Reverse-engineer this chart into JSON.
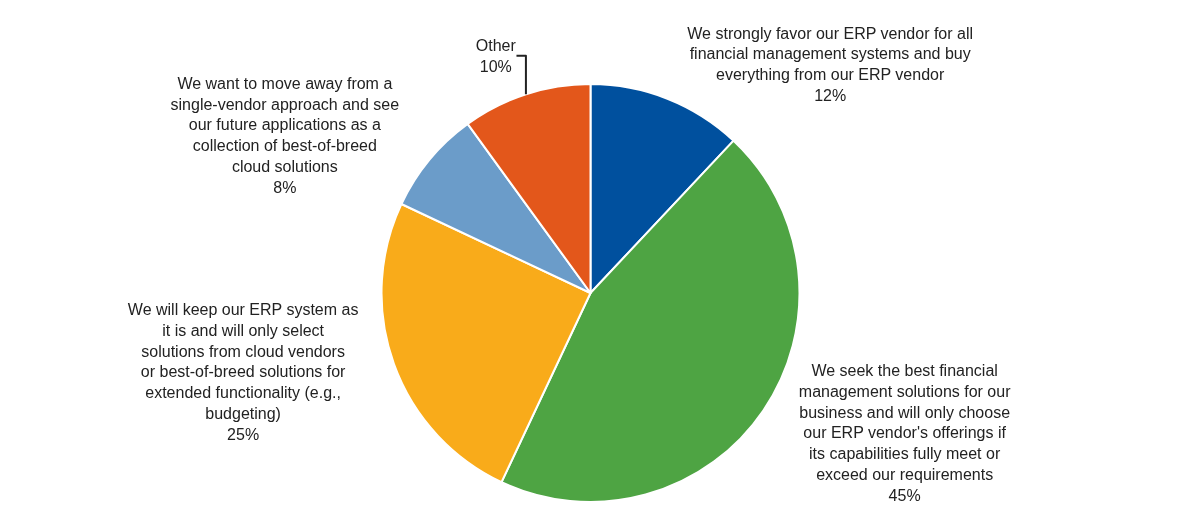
{
  "chart_data": {
    "type": "pie",
    "categories": [
      "We strongly favor our ERP vendor for all financial management systems and buy everything from our ERP vendor",
      "We seek the best financial management solutions for our business and will only choose our ERP vendor's offerings if its capabilities fully meet or exceed our requirements",
      "We will keep our ERP system as it is and will only select solutions from cloud vendors or best-of-breed solutions for extended functionality (e.g., budgeting)",
      "We want to move away from a single-vendor approach and see our future applications as a collection of best-of-breed cloud solutions",
      "Other"
    ],
    "values": [
      12,
      45,
      25,
      8,
      10
    ],
    "value_labels": [
      "12%",
      "45%",
      "25%",
      "8%",
      "10%"
    ],
    "colors": [
      "#00509e",
      "#4ea443",
      "#f9ab1a",
      "#6b9cc9",
      "#e3571b"
    ],
    "legend": false
  }
}
